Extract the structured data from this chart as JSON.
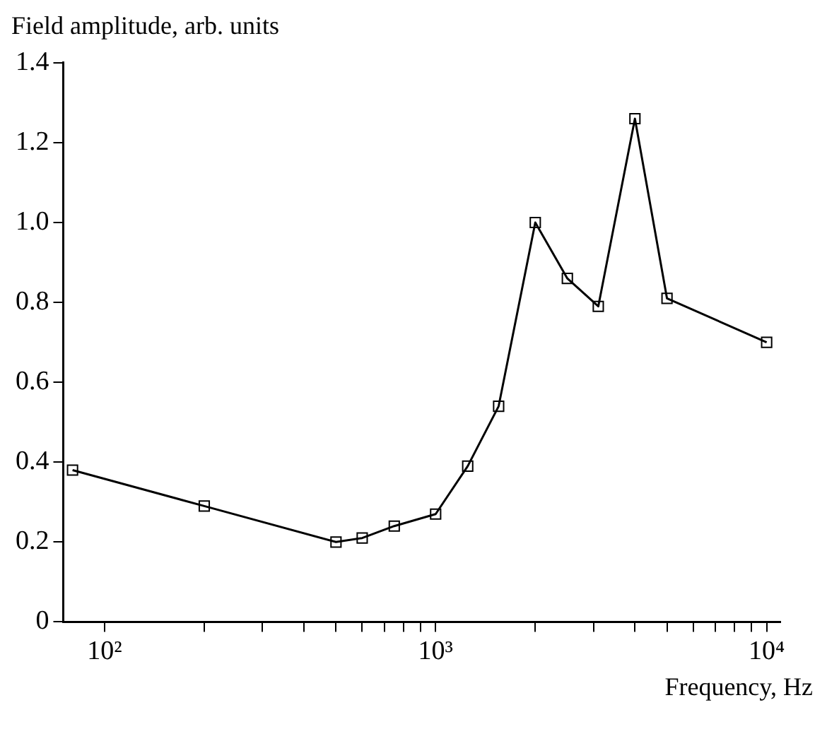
{
  "chart_data": {
    "type": "line",
    "xlabel": "Frequency, Hz",
    "ylabel": "Field amplitude, arb. units",
    "x": [
      80,
      200,
      500,
      600,
      750,
      1000,
      1250,
      1550,
      2000,
      2500,
      3100,
      4000,
      5000,
      10000
    ],
    "values": [
      0.38,
      0.29,
      0.2,
      0.21,
      0.24,
      0.27,
      0.39,
      0.54,
      1.0,
      0.86,
      0.79,
      1.26,
      0.81,
      0.7
    ],
    "color": "#000000",
    "marker": "square",
    "log": "x",
    "grid": false,
    "xlim": [
      75,
      11000
    ],
    "xticks": [
      {
        "value": 100,
        "label": "10²"
      },
      {
        "value": 200,
        "label": null
      },
      {
        "value": 300,
        "label": null
      },
      {
        "value": 400,
        "label": null
      },
      {
        "value": 500,
        "label": null
      },
      {
        "value": 600,
        "label": null
      },
      {
        "value": 700,
        "label": null
      },
      {
        "value": 800,
        "label": null
      },
      {
        "value": 900,
        "label": null
      },
      {
        "value": 1000,
        "label": "10³"
      },
      {
        "value": 2000,
        "label": null
      },
      {
        "value": 3000,
        "label": null
      },
      {
        "value": 4000,
        "label": null
      },
      {
        "value": 5000,
        "label": null
      },
      {
        "value": 6000,
        "label": null
      },
      {
        "value": 7000,
        "label": null
      },
      {
        "value": 8000,
        "label": null
      },
      {
        "value": 9000,
        "label": null
      },
      {
        "value": 10000,
        "label": "10⁴"
      }
    ],
    "ylim": [
      0,
      1.4
    ],
    "yticks": [
      0,
      0.2,
      0.4,
      0.6,
      0.8,
      {
        "value": 1,
        "label": "1.0"
      },
      1.2,
      1.4
    ]
  }
}
